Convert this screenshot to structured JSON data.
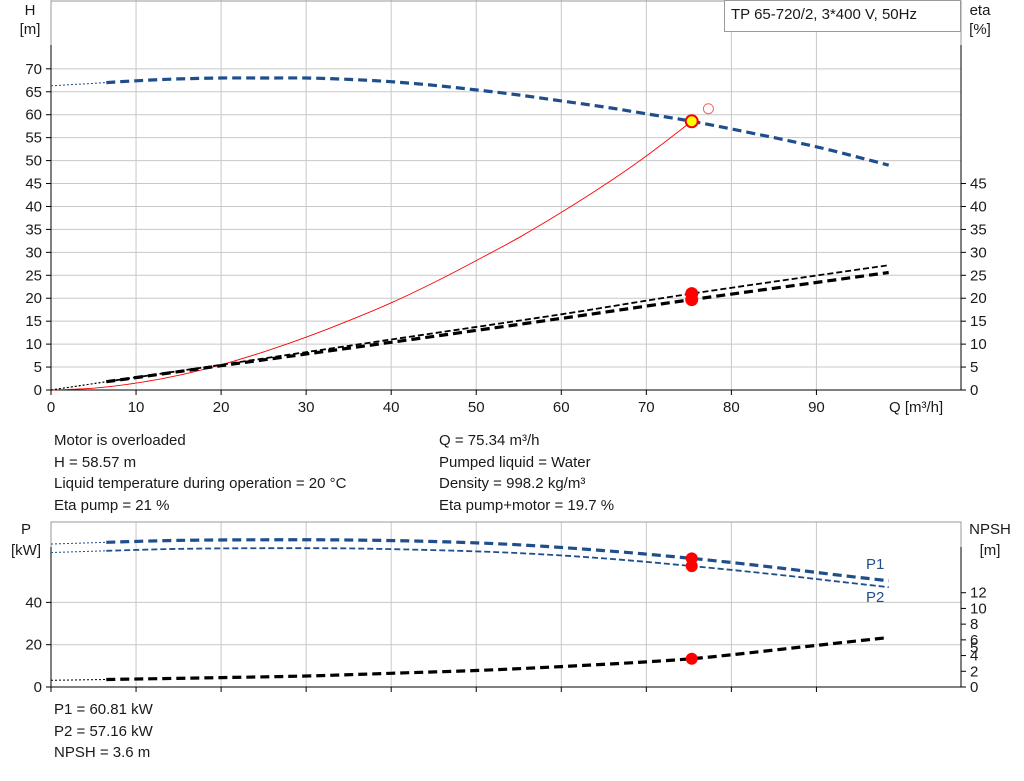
{
  "legend_title": "TP 65-720/2, 3*400 V, 50Hz",
  "info_top_left": [
    "Motor is overloaded",
    "H = 58.57 m",
    "Liquid temperature during operation = 20 °C",
    "Eta pump = 21 %"
  ],
  "info_top_right": [
    "Q = 75.34 m³/h",
    "Pumped liquid = Water",
    "Density = 998.2 kg/m³",
    "Eta pump+motor = 19.7 %"
  ],
  "info_bottom": [
    "P1 = 60.81 kW",
    "P2 = 57.16 kW",
    "NPSH = 3.6 m"
  ],
  "colors": {
    "blue": "#1f4e8c",
    "black": "#000000",
    "red": "#ff0000",
    "yellow": "#ffff00",
    "grid": "#c8c8c8"
  },
  "chart_data": [
    {
      "type": "line",
      "y_axis_label": [
        "H",
        "[m]"
      ],
      "y2_axis_label": [
        "eta",
        "[%]"
      ],
      "x_axis_label": "Q [m³/h]",
      "xlim": [
        0,
        107
      ],
      "x_ticks": [
        0,
        10,
        20,
        30,
        40,
        50,
        60,
        70,
        80,
        90
      ],
      "ylim": [
        0,
        85
      ],
      "y_ticks": [
        0,
        5,
        10,
        15,
        20,
        25,
        30,
        35,
        40,
        45,
        50,
        55,
        60,
        65,
        70
      ],
      "y2_ticks": [
        0,
        5,
        10,
        15,
        20,
        25,
        30,
        35,
        40,
        45
      ],
      "grid": true,
      "series": [
        {
          "id": "head",
          "axis": "left",
          "color": "#1f4e8c",
          "style": "thick-dashed",
          "x": [
            6.5,
            10,
            15,
            20,
            25,
            30,
            35,
            40,
            45,
            50,
            55,
            60,
            65,
            70,
            75.34,
            80,
            85,
            90,
            95,
            98.5
          ],
          "y": [
            67.0,
            67.4,
            67.8,
            68.0,
            68.0,
            68.0,
            67.7,
            67.2,
            66.4,
            65.4,
            64.3,
            63.0,
            61.7,
            60.2,
            58.57,
            56.9,
            55.0,
            53.0,
            50.7,
            49.0
          ],
          "extrapolated": {
            "x": [
              0,
              6.5
            ],
            "y": [
              66.3,
              67.0
            ]
          }
        },
        {
          "id": "system",
          "axis": "left",
          "color": "#ff0000",
          "style": "thin-solid",
          "x": [
            0,
            5,
            10,
            15,
            20,
            25,
            30,
            35,
            40,
            45,
            50,
            55,
            60,
            65,
            70,
            75.34
          ],
          "y": [
            0,
            0.4,
            1.5,
            3.2,
            5.5,
            8.3,
            11.5,
            15.1,
            19.0,
            23.4,
            28.2,
            33.2,
            38.7,
            44.6,
            51.0,
            58.57
          ]
        },
        {
          "id": "eta-pump",
          "axis": "right",
          "color": "#000000",
          "style": "thin-dashed",
          "x": [
            6.5,
            20,
            40,
            60,
            75.34,
            98.5
          ],
          "y": [
            1.8,
            5.5,
            11.0,
            16.5,
            21.0,
            27.2
          ],
          "extrapolated": {
            "x": [
              0,
              6.5
            ],
            "y": [
              0,
              1.8
            ]
          }
        },
        {
          "id": "eta-pump-motor",
          "axis": "right",
          "color": "#000000",
          "style": "thick-dashed",
          "x": [
            6.5,
            20,
            40,
            60,
            75.34,
            98.5
          ],
          "y": [
            1.8,
            5.3,
            10.4,
            15.6,
            19.7,
            25.6
          ],
          "extrapolated": {
            "x": [
              0,
              6.5
            ],
            "y": [
              0,
              1.8
            ]
          }
        }
      ],
      "markers": [
        {
          "x": 75.34,
          "y": 58.57,
          "axis": "left",
          "fill": "#ffff00",
          "stroke": "#ff0000",
          "r": 6
        },
        {
          "x": 77.3,
          "y": 61.3,
          "axis": "left",
          "fill": "none",
          "stroke": "#ff6060",
          "r": 5
        },
        {
          "x": 75.34,
          "y": 21.0,
          "axis": "right",
          "fill": "#ff0000",
          "stroke": "#ff0000",
          "r": 5.5
        },
        {
          "x": 75.34,
          "y": 19.7,
          "axis": "right",
          "fill": "#ff0000",
          "stroke": "#ff0000",
          "r": 5.5
        }
      ]
    },
    {
      "type": "line",
      "y_axis_label": [
        "P",
        "[kW]"
      ],
      "y2_axis_label": [
        "NPSH",
        "[m]"
      ],
      "xlim": [
        0,
        107
      ],
      "x_ticks": [
        0,
        10,
        20,
        30,
        40,
        50,
        60,
        70,
        80,
        90
      ],
      "ylim": [
        0,
        78
      ],
      "y_ticks": [
        0,
        20,
        40
      ],
      "y2lim": [
        0,
        21
      ],
      "y2_ticks": [
        0,
        2,
        4,
        6,
        8,
        10,
        12
      ],
      "y2_tick_labels": [
        "0",
        "2",
        "4",
        "5",
        "6",
        "8",
        "10",
        "12"
      ],
      "y2_tick_label_values": [
        0,
        2,
        4,
        5,
        6,
        8,
        10,
        12
      ],
      "grid": true,
      "series": [
        {
          "id": "P1",
          "name": "P1",
          "axis": "left",
          "color": "#1f4e8c",
          "style": "thick-dashed",
          "x": [
            6.5,
            15,
            25,
            35,
            45,
            55,
            65,
            75.34,
            85,
            92,
            98.5
          ],
          "y": [
            68.4,
            69.3,
            69.6,
            69.5,
            68.8,
            67.2,
            64.5,
            60.81,
            56.6,
            53.2,
            50.2
          ],
          "extrapolated": {
            "x": [
              0,
              6.5
            ],
            "y": [
              67.6,
              68.4
            ]
          }
        },
        {
          "id": "P2",
          "name": "P2",
          "axis": "left",
          "color": "#1f4e8c",
          "style": "thin-dashed",
          "x": [
            6.5,
            15,
            25,
            35,
            45,
            55,
            65,
            75.34,
            85,
            92,
            98.5
          ],
          "y": [
            64.4,
            65.3,
            65.6,
            65.5,
            64.7,
            63.3,
            60.8,
            57.16,
            53.3,
            50.1,
            47.2
          ],
          "extrapolated": {
            "x": [
              0,
              6.5
            ],
            "y": [
              63.6,
              64.4
            ]
          }
        },
        {
          "id": "NPSH",
          "axis": "right",
          "color": "#000000",
          "style": "thick-dashed",
          "x": [
            6.5,
            20,
            30,
            40,
            50,
            60,
            70,
            75.34,
            80,
            90,
            98.5
          ],
          "y": [
            0.95,
            1.2,
            1.4,
            1.75,
            2.1,
            2.6,
            3.2,
            3.6,
            4.1,
            5.3,
            6.3
          ],
          "extrapolated": {
            "x": [
              0,
              6.5
            ],
            "y": [
              0.85,
              0.95
            ]
          }
        }
      ],
      "markers": [
        {
          "x": 75.34,
          "y": 60.81,
          "axis": "left",
          "fill": "#ff0000",
          "stroke": "#ff0000",
          "r": 5.5
        },
        {
          "x": 75.34,
          "y": 57.16,
          "axis": "left",
          "fill": "#ff0000",
          "stroke": "#ff0000",
          "r": 5.5
        },
        {
          "x": 75.34,
          "y": 3.6,
          "axis": "right",
          "fill": "#ff0000",
          "stroke": "#ff0000",
          "r": 5.5
        }
      ]
    }
  ]
}
